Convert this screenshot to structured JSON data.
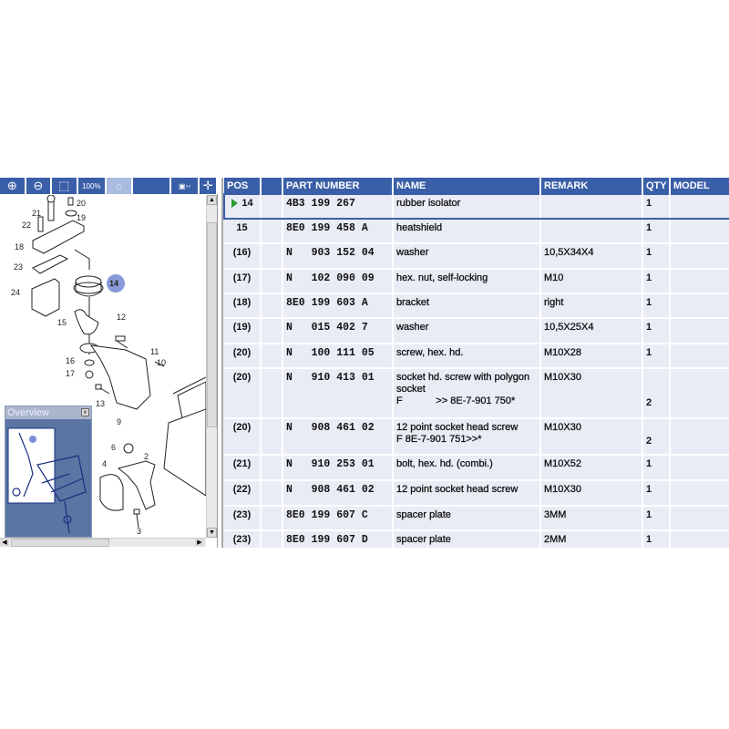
{
  "toolbar": {
    "buttons": [
      {
        "icon": "zoom-in-icon",
        "glyph": "⊕"
      },
      {
        "icon": "zoom-out-icon",
        "glyph": "⊖"
      },
      {
        "icon": "zoom-area-icon",
        "glyph": "⬚"
      },
      {
        "icon": "zoom-100-icon",
        "glyph": "100%"
      },
      {
        "icon": "zoom-search-icon",
        "glyph": "○",
        "disabled": true
      },
      {
        "icon": "layout-icon",
        "glyph": "▣▫▫"
      },
      {
        "icon": "split-arrows-icon",
        "glyph": "✛"
      }
    ]
  },
  "diagram": {
    "callouts": [
      "20",
      "21",
      "19",
      "22",
      "18",
      "23",
      "14",
      "24",
      "15",
      "12",
      "11",
      "10",
      "16",
      "17",
      "13",
      "9",
      "6",
      "2",
      "4",
      "3"
    ],
    "highlighted": "14",
    "highlight_color": "#8a9ad8"
  },
  "overview": {
    "title": "Overview",
    "close": "×"
  },
  "table": {
    "headers": [
      "POS",
      "",
      "PART NUMBER",
      "NAME",
      "REMARK",
      "QTY",
      "MODEL"
    ],
    "selected_index": 0,
    "rows": [
      {
        "pos": "14",
        "pn": "4B3 199 267",
        "name": [
          "rubber isolator"
        ],
        "remark": "",
        "qty": "1"
      },
      {
        "pos": "15",
        "pn": "8E0 199 458 A",
        "name": [
          "heatshield"
        ],
        "remark": "",
        "qty": "1"
      },
      {
        "pos": "(16)",
        "pn": "N   903 152 04",
        "name": [
          "washer"
        ],
        "remark": "10,5X34X4",
        "qty": "1"
      },
      {
        "pos": "(17)",
        "pn": "N   102 090 09",
        "name": [
          "hex. nut, self-locking"
        ],
        "remark": "M10",
        "qty": "1"
      },
      {
        "pos": "(18)",
        "pn": "8E0 199 603 A",
        "name": [
          "bracket"
        ],
        "remark": "right",
        "qty": "1"
      },
      {
        "pos": "(19)",
        "pn": "N   015 402 7",
        "name": [
          "washer"
        ],
        "remark": "10,5X25X4",
        "qty": "1"
      },
      {
        "pos": "(20)",
        "pn": "N   100 111 05",
        "name": [
          "screw, hex. hd."
        ],
        "remark": "M10X28",
        "qty": "1"
      },
      {
        "pos": "(20)",
        "pn": "N   910 413 01",
        "name": [
          "socket hd. screw with polygon",
          "socket",
          "F            >> 8E-7-901 750*"
        ],
        "remark": "M10X30",
        "qty": "2"
      },
      {
        "pos": "(20)",
        "pn": "N   908 461 02",
        "name": [
          "12 point socket head screw",
          "F 8E-7-901 751>>*"
        ],
        "remark": "M10X30",
        "qty": "2"
      },
      {
        "pos": "(21)",
        "pn": "N   910 253 01",
        "name": [
          "bolt, hex. hd. (combi.)"
        ],
        "remark": "M10X52",
        "qty": "1"
      },
      {
        "pos": "(22)",
        "pn": "N   908 461 02",
        "name": [
          "12 point socket head screw"
        ],
        "remark": "M10X30",
        "qty": "1"
      },
      {
        "pos": "(23)",
        "pn": "8E0 199 607 C",
        "name": [
          "spacer plate"
        ],
        "remark": "3MM",
        "qty": "1"
      },
      {
        "pos": "(23)",
        "pn": "8E0 199 607 D",
        "name": [
          "spacer plate"
        ],
        "remark": "2MM",
        "qty": "1"
      }
    ]
  },
  "colors": {
    "header_bg": "#3a5fa8",
    "row_bg": "#e9ecf5",
    "selection": "#3a5fa8",
    "indicator": "#2a9a2a"
  }
}
